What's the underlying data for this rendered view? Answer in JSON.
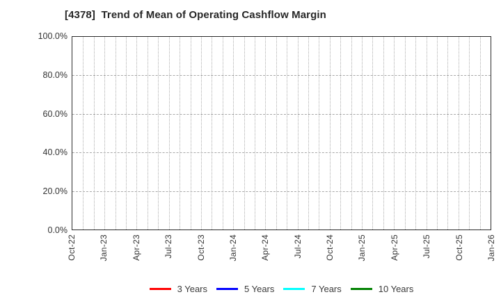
{
  "chart_data": {
    "type": "line",
    "title": "[4378]  Trend of Mean of Operating Cashflow Margin",
    "x_tick_labels": [
      "Oct-22",
      "Jan-23",
      "Apr-23",
      "Jul-23",
      "Oct-23",
      "Jan-24",
      "Apr-24",
      "Jul-24",
      "Oct-24",
      "Jan-25",
      "Apr-25",
      "Jul-25",
      "Oct-25",
      "Jan-26"
    ],
    "months_per_tick": 3,
    "y_tick_labels": [
      "100.0%",
      "80.0%",
      "60.0%",
      "40.0%",
      "20.0%",
      "0.0%"
    ],
    "ylim": [
      0,
      100
    ],
    "grid": true,
    "grid_vertical_interval": "monthly",
    "legend_position": "bottom-center",
    "plot_background": "#ffffff",
    "series": [
      {
        "name": "3 Years",
        "color": "#ff0000",
        "values": []
      },
      {
        "name": "5 Years",
        "color": "#0000ff",
        "values": []
      },
      {
        "name": "7 Years",
        "color": "#00ffff",
        "values": []
      },
      {
        "name": "10 Years",
        "color": "#008000",
        "values": []
      }
    ]
  }
}
